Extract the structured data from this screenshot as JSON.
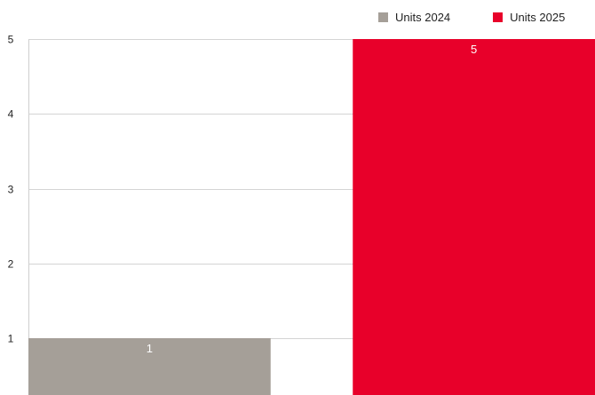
{
  "chart_data": {
    "type": "bar",
    "title": "",
    "xlabel": "",
    "ylabel": "",
    "categories": [
      ""
    ],
    "series": [
      {
        "name": "Units 2024",
        "values": [
          1
        ],
        "color": "#a59f98"
      },
      {
        "name": "Units 2025",
        "values": [
          5
        ],
        "color": "#e8002a"
      }
    ],
    "ylim": [
      0,
      5
    ],
    "y_ticks": [
      1,
      2,
      3,
      4,
      5
    ],
    "grid": true,
    "legend_position": "top-right",
    "data_labels": true
  }
}
